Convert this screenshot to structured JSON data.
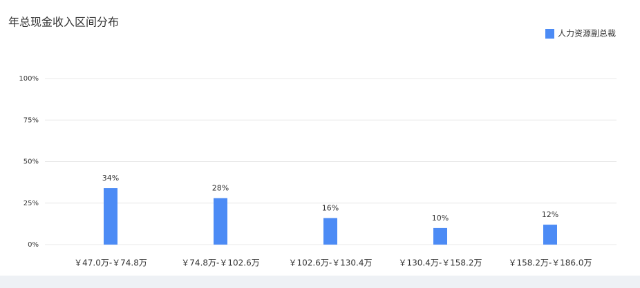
{
  "chart_data": {
    "type": "bar",
    "title": "年总现金收入区间分布",
    "categories": [
      "￥47.0万-￥74.8万",
      "￥74.8万-￥102.6万",
      "￥102.6万-￥130.4万",
      "￥130.4万-￥158.2万",
      "￥158.2万-￥186.0万"
    ],
    "series": [
      {
        "name": "人力资源副总裁",
        "color": "#4c8bf5",
        "values": [
          34,
          28,
          16,
          10,
          12
        ],
        "value_labels": [
          "34%",
          "28%",
          "16%",
          "10%",
          "12%"
        ]
      }
    ],
    "ylim": [
      0,
      100
    ],
    "yticks": [
      {
        "value": 0,
        "label": "0%"
      },
      {
        "value": 25,
        "label": "25%"
      },
      {
        "value": 50,
        "label": "50%"
      },
      {
        "value": 75,
        "label": "75%"
      },
      {
        "value": 100,
        "label": "100%"
      }
    ],
    "grid": true,
    "legend": "top-right"
  }
}
